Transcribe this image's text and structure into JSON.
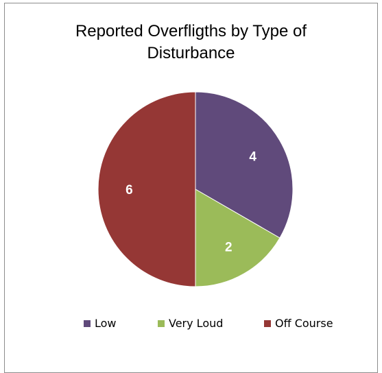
{
  "chart_data": {
    "type": "pie",
    "title": "Reported Overfligths by Type of Disturbance",
    "title_lines": [
      "Reported Overfligths by Type of",
      "Disturbance"
    ],
    "categories": [
      "Low",
      "Very Loud",
      "Off Course"
    ],
    "values": [
      4,
      2,
      6
    ],
    "colors": [
      "#604A7B",
      "#9BBB59",
      "#953735"
    ],
    "data_labels": [
      "4",
      "2",
      "6"
    ],
    "legend_position": "bottom"
  }
}
